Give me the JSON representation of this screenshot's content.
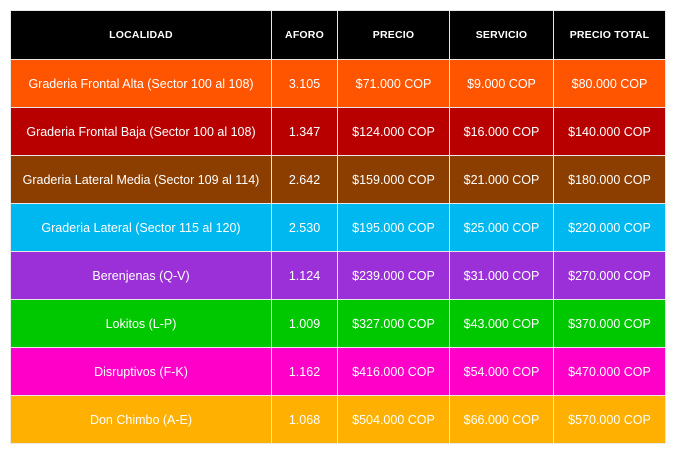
{
  "headers": {
    "localidad": "LOCALIDAD",
    "aforo": "AFORO",
    "precio": "PRECIO",
    "servicio": "SERVICIO",
    "precio_total": "PRECIO TOTAL"
  },
  "colors": {
    "header_bg": "#000000",
    "row_colors": [
      "#ff5400",
      "#b80000",
      "#8b3e00",
      "#00b8f0",
      "#9b30d8",
      "#00c800",
      "#ff00c8",
      "#ffb000"
    ]
  },
  "rows": [
    {
      "localidad": "Graderia Frontal Alta (Sector 100 al 108)",
      "aforo": "3.105",
      "precio": "$71.000 COP",
      "servicio": "$9.000 COP",
      "precio_total": "$80.000 COP"
    },
    {
      "localidad": "Graderia Frontal Baja (Sector 100 al 108)",
      "aforo": "1.347",
      "precio": "$124.000 COP",
      "servicio": "$16.000 COP",
      "precio_total": "$140.000 COP"
    },
    {
      "localidad": "Graderia Lateral Media (Sector 109 al 114)",
      "aforo": "2.642",
      "precio": "$159.000 COP",
      "servicio": "$21.000 COP",
      "precio_total": "$180.000 COP"
    },
    {
      "localidad": "Graderia Lateral (Sector 115 al 120)",
      "aforo": "2.530",
      "precio": "$195.000 COP",
      "servicio": "$25.000 COP",
      "precio_total": "$220.000 COP"
    },
    {
      "localidad": "Berenjenas (Q-V)",
      "aforo": "1.124",
      "precio": "$239.000 COP",
      "servicio": "$31.000 COP",
      "precio_total": "$270.000 COP"
    },
    {
      "localidad": "Lokitos (L-P)",
      "aforo": "1.009",
      "precio": "$327.000 COP",
      "servicio": "$43.000 COP",
      "precio_total": "$370.000 COP"
    },
    {
      "localidad": "Disruptivos (F-K)",
      "aforo": "1.162",
      "precio": "$416.000 COP",
      "servicio": "$54.000 COP",
      "precio_total": "$470.000 COP"
    },
    {
      "localidad": "Don Chimbo (A-E)",
      "aforo": "1.068",
      "precio": "$504.000 COP",
      "servicio": "$66.000 COP",
      "precio_total": "$570.000 COP"
    }
  ]
}
